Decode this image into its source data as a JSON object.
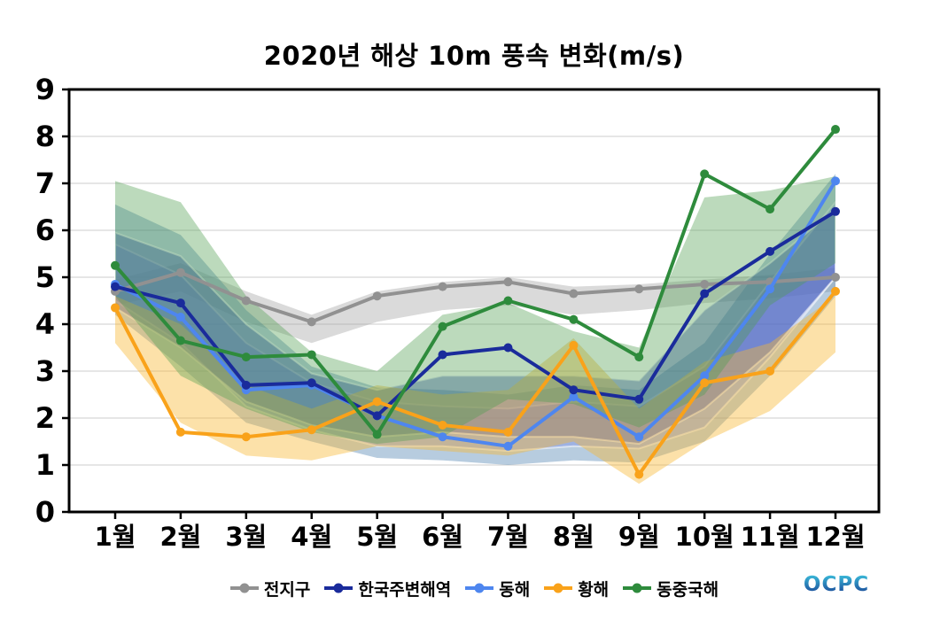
{
  "title": "2020년 해상 10m 풍속 변화(m/s)",
  "logo": {
    "text": "OCPC",
    "gradient_top": "#3ec6e0",
    "gradient_bottom": "#16398f"
  },
  "axes": {
    "y_tick_labels": [
      "0",
      "1",
      "2",
      "3",
      "4",
      "5",
      "6",
      "7",
      "8",
      "9"
    ],
    "x_tick_labels": [
      "1월",
      "2월",
      "3월",
      "4월",
      "5월",
      "6월",
      "7월",
      "8월",
      "9월",
      "10월",
      "11월",
      "12월"
    ],
    "axis_color": "#000000",
    "grid_color": "#d8d8d8"
  },
  "chart_data": {
    "type": "line",
    "title": "2020년 해상 10m 풍속 변화(m/s)",
    "x_labels": [
      "1월",
      "2월",
      "3월",
      "4월",
      "5월",
      "6월",
      "7월",
      "8월",
      "9월",
      "10월",
      "11월",
      "12월"
    ],
    "ylim": [
      0,
      9
    ],
    "y_ticks": [
      0,
      1,
      2,
      3,
      4,
      5,
      6,
      7,
      8,
      9
    ],
    "grid": "horizontal",
    "legend_position": "bottom",
    "draw_order": [
      "전지구",
      "동해",
      "한국주변해역",
      "황해",
      "동중국해"
    ],
    "series": [
      {
        "name": "전지구",
        "key": "global",
        "color": "#919191",
        "line_width": 4,
        "values": [
          4.7,
          5.1,
          4.5,
          4.05,
          4.6,
          4.8,
          4.9,
          4.65,
          4.75,
          4.85,
          4.9,
          5.0
        ],
        "bands": [
          {
            "upper": [
              4.95,
              5.3,
              4.7,
              4.2,
              4.7,
              4.9,
              5.0,
              4.8,
              4.85,
              4.95,
              5.05,
              5.2
            ],
            "lower": [
              4.4,
              4.7,
              4.05,
              3.6,
              4.05,
              4.3,
              4.4,
              4.2,
              4.3,
              4.45,
              4.55,
              4.7
            ],
            "fill": "#9e9e9e",
            "opacity": 0.38,
            "white_edge": false
          }
        ]
      },
      {
        "name": "한국주변해역",
        "key": "korea-waters",
        "color": "#1a2b9b",
        "line_width": 4,
        "values": [
          4.8,
          4.45,
          2.7,
          2.75,
          2.05,
          3.35,
          3.5,
          2.6,
          2.4,
          4.65,
          5.55,
          6.4
        ],
        "bands": [
          {
            "upper": [
              5.95,
              5.45,
              4.0,
              2.95,
              2.6,
              2.9,
              2.9,
              2.9,
              2.8,
              4.3,
              5.3,
              6.45
            ],
            "lower": [
              4.35,
              3.5,
              2.35,
              1.85,
              1.6,
              1.7,
              1.6,
              1.6,
              1.45,
              2.2,
              3.4,
              5.0
            ],
            "fill": "#3d53b5",
            "opacity": 0.45,
            "white_edge": true
          }
        ]
      },
      {
        "name": "동해",
        "key": "east-sea",
        "color": "#4e86ef",
        "line_width": 4,
        "values": [
          4.85,
          4.15,
          2.6,
          2.7,
          2.05,
          1.6,
          1.4,
          2.45,
          1.6,
          2.9,
          4.75,
          7.05
        ],
        "bands": [
          {
            "upper": [
              6.55,
              5.9,
              4.3,
              3.1,
              2.65,
              2.6,
              2.5,
              2.7,
              2.6,
              3.6,
              5.5,
              7.2
            ],
            "lower": [
              4.2,
              3.1,
              1.9,
              1.5,
              1.15,
              1.1,
              1.0,
              1.1,
              1.05,
              1.5,
              2.9,
              4.6
            ],
            "fill": "#4a7fae",
            "opacity": 0.4,
            "white_edge": false
          },
          {
            "upper": [
              5.7,
              5.05,
              3.6,
              2.75,
              2.35,
              2.25,
              2.2,
              2.35,
              2.25,
              3.1,
              4.9,
              6.6
            ],
            "lower": [
              4.5,
              3.6,
              2.25,
              1.75,
              1.4,
              1.4,
              1.3,
              1.4,
              1.35,
              1.8,
              3.3,
              5.0
            ],
            "fill": "#8597e8",
            "opacity": 0.5,
            "white_edge": true
          }
        ]
      },
      {
        "name": "황해",
        "key": "yellow-sea",
        "color": "#f9a21a",
        "line_width": 4,
        "values": [
          4.35,
          1.7,
          1.6,
          1.75,
          2.35,
          1.85,
          1.7,
          3.55,
          0.8,
          2.75,
          3.0,
          4.7
        ],
        "bands": [
          {
            "upper": [
              4.6,
              4.0,
              2.7,
              2.2,
              2.7,
              2.5,
              2.6,
              3.7,
              2.2,
              3.2,
              3.6,
              4.6
            ],
            "lower": [
              3.6,
              1.9,
              1.2,
              1.1,
              1.4,
              1.3,
              1.2,
              1.5,
              0.6,
              1.5,
              2.15,
              3.4
            ],
            "fill": "#f7b733",
            "opacity": 0.42,
            "white_edge": false
          }
        ]
      },
      {
        "name": "동중국해",
        "key": "east-china-sea",
        "color": "#2e8b3c",
        "line_width": 4,
        "values": [
          5.25,
          3.65,
          3.3,
          3.35,
          1.65,
          3.95,
          4.5,
          4.1,
          3.3,
          7.2,
          6.45,
          8.15
        ],
        "bands": [
          {
            "upper": [
              7.05,
              6.6,
              4.6,
              3.4,
              3.0,
              4.2,
              4.45,
              3.85,
              3.5,
              6.7,
              6.85,
              7.15
            ],
            "lower": [
              4.6,
              2.9,
              2.2,
              1.7,
              1.45,
              1.6,
              2.4,
              2.3,
              1.8,
              2.5,
              4.4,
              5.3
            ],
            "fill": "#4f9e4f",
            "opacity": 0.38,
            "white_edge": false
          }
        ]
      }
    ]
  }
}
